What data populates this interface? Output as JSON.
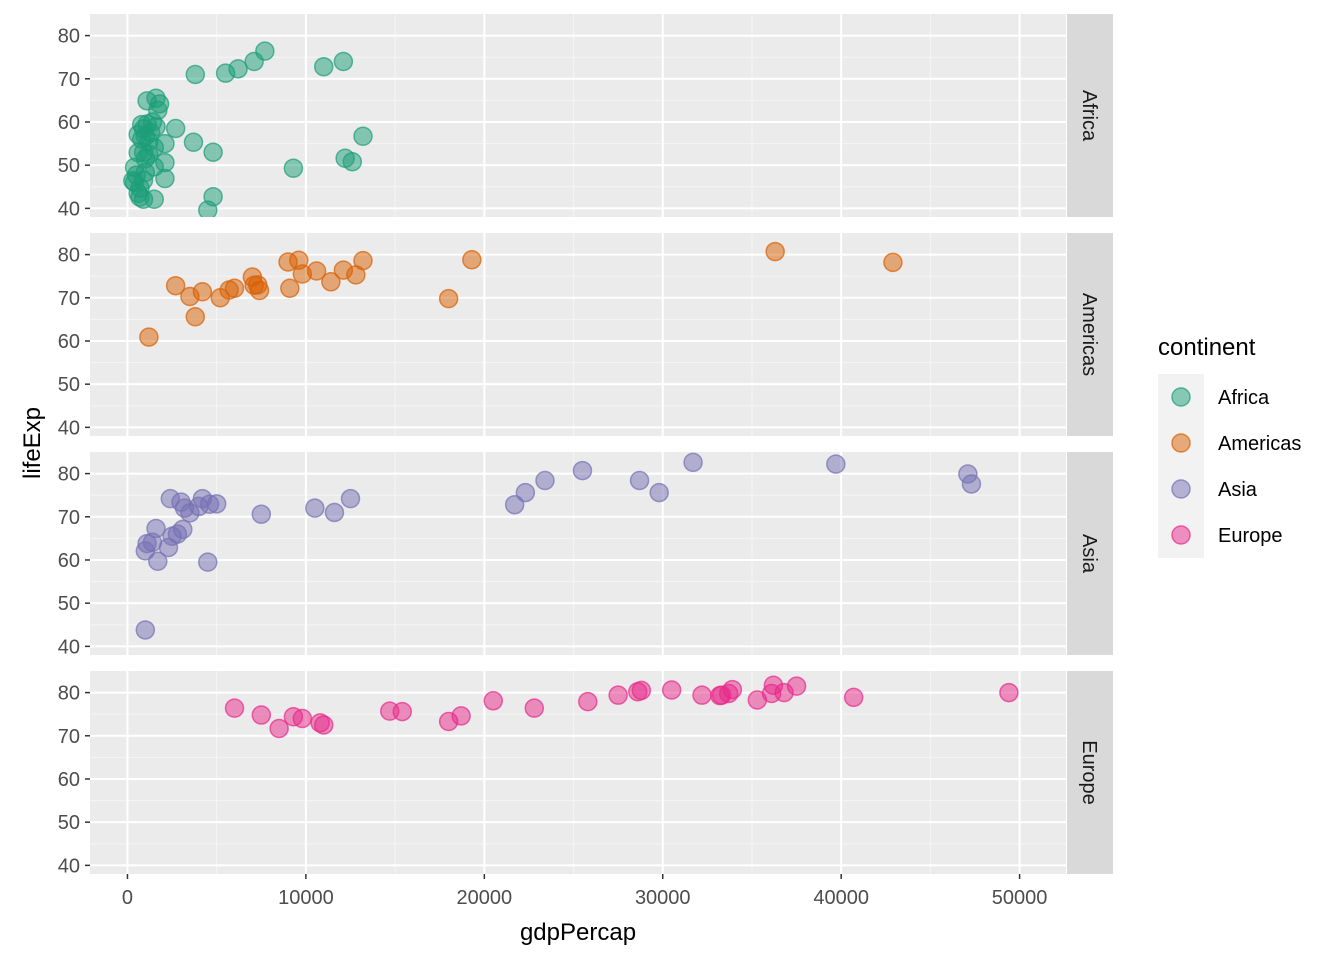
{
  "chart_data": {
    "type": "scatter",
    "facet_by": "continent",
    "facet_strip_position": "right",
    "xlabel": "gdpPercap",
    "ylabel": "lifeExp",
    "xlim": [
      -2100,
      52600
    ],
    "ylim": [
      38,
      85
    ],
    "x_ticks": [
      0,
      10000,
      20000,
      30000,
      40000,
      50000
    ],
    "y_ticks": [
      40,
      50,
      60,
      70,
      80
    ],
    "grid": true,
    "legend": {
      "title": "continent",
      "position": "right",
      "items": [
        "Africa",
        "Americas",
        "Asia",
        "Europe"
      ]
    },
    "colors": {
      "Africa": "#1B9E77",
      "Americas": "#D95F02",
      "Asia": "#7570B3",
      "Europe": "#E7298A"
    },
    "point_alpha": 0.5,
    "series": [
      {
        "name": "Africa",
        "points": [
          [
            3800,
            71.0
          ],
          [
            5500,
            71.3
          ],
          [
            6200,
            72.3
          ],
          [
            7100,
            74.0
          ],
          [
            7700,
            76.4
          ],
          [
            11000,
            72.8
          ],
          [
            12100,
            74.0
          ],
          [
            13200,
            56.7
          ],
          [
            12200,
            51.6
          ],
          [
            12600,
            50.8
          ],
          [
            9300,
            49.3
          ],
          [
            4800,
            53.0
          ],
          [
            4800,
            42.7
          ],
          [
            4500,
            39.6
          ],
          [
            3700,
            55.3
          ],
          [
            2700,
            58.5
          ],
          [
            2100,
            55.0
          ],
          [
            2100,
            50.6
          ],
          [
            2100,
            46.9
          ],
          [
            1800,
            64.2
          ],
          [
            1700,
            62.7
          ],
          [
            1600,
            65.5
          ],
          [
            1600,
            58.9
          ],
          [
            1500,
            54.1
          ],
          [
            1500,
            49.6
          ],
          [
            1500,
            42.1
          ],
          [
            1400,
            60.0
          ],
          [
            1300,
            57.5
          ],
          [
            1200,
            55.5
          ],
          [
            1200,
            52.5
          ],
          [
            1100,
            64.9
          ],
          [
            1100,
            59.5
          ],
          [
            1000,
            56.7
          ],
          [
            1000,
            51.5
          ],
          [
            1000,
            48.3
          ],
          [
            900,
            58.4
          ],
          [
            900,
            53.0
          ],
          [
            900,
            46.5
          ],
          [
            900,
            42.1
          ],
          [
            800,
            59.4
          ],
          [
            800,
            56.0
          ],
          [
            700,
            44.7
          ],
          [
            700,
            42.6
          ],
          [
            600,
            57.1
          ],
          [
            600,
            52.9
          ],
          [
            500,
            47.7
          ],
          [
            400,
            46.0
          ],
          [
            300,
            46.4
          ],
          [
            400,
            49.5
          ],
          [
            600,
            43.5
          ]
        ]
      },
      {
        "name": "Americas",
        "points": [
          [
            1200,
            60.9
          ],
          [
            2700,
            72.8
          ],
          [
            3500,
            70.3
          ],
          [
            3800,
            65.6
          ],
          [
            4200,
            71.4
          ],
          [
            5200,
            70.0
          ],
          [
            5700,
            71.8
          ],
          [
            6000,
            72.2
          ],
          [
            7000,
            74.8
          ],
          [
            7100,
            72.9
          ],
          [
            7300,
            73.0
          ],
          [
            7400,
            71.7
          ],
          [
            9000,
            78.3
          ],
          [
            9100,
            72.2
          ],
          [
            9600,
            78.7
          ],
          [
            9800,
            75.5
          ],
          [
            10600,
            76.2
          ],
          [
            11400,
            73.7
          ],
          [
            12100,
            76.4
          ],
          [
            12800,
            75.3
          ],
          [
            13200,
            78.6
          ],
          [
            18000,
            69.8
          ],
          [
            19300,
            78.8
          ],
          [
            36300,
            80.7
          ],
          [
            42900,
            78.2
          ]
        ]
      },
      {
        "name": "Asia",
        "points": [
          [
            1000,
            43.8
          ],
          [
            1000,
            62.1
          ],
          [
            1100,
            63.8
          ],
          [
            1400,
            64.1
          ],
          [
            1600,
            67.3
          ],
          [
            1700,
            59.7
          ],
          [
            2300,
            62.9
          ],
          [
            2400,
            74.2
          ],
          [
            2500,
            65.5
          ],
          [
            2800,
            66.0
          ],
          [
            3000,
            73.4
          ],
          [
            3100,
            67.1
          ],
          [
            3200,
            72.0
          ],
          [
            3500,
            70.9
          ],
          [
            4000,
            72.4
          ],
          [
            4200,
            74.2
          ],
          [
            4500,
            59.5
          ],
          [
            4600,
            72.9
          ],
          [
            5000,
            73.0
          ],
          [
            7500,
            70.6
          ],
          [
            10500,
            72.0
          ],
          [
            11600,
            71.0
          ],
          [
            12500,
            74.2
          ],
          [
            21700,
            72.8
          ],
          [
            22300,
            75.6
          ],
          [
            23400,
            78.4
          ],
          [
            25500,
            80.7
          ],
          [
            28700,
            78.4
          ],
          [
            29800,
            75.6
          ],
          [
            31700,
            82.6
          ],
          [
            39700,
            82.2
          ],
          [
            47100,
            79.9
          ],
          [
            47300,
            77.6
          ]
        ]
      },
      {
        "name": "Europe",
        "points": [
          [
            6000,
            76.4
          ],
          [
            7500,
            74.8
          ],
          [
            8500,
            71.7
          ],
          [
            9300,
            74.4
          ],
          [
            9800,
            74.0
          ],
          [
            10800,
            73.0
          ],
          [
            11000,
            72.5
          ],
          [
            14700,
            75.7
          ],
          [
            15400,
            75.6
          ],
          [
            18000,
            73.3
          ],
          [
            18700,
            74.6
          ],
          [
            20500,
            78.1
          ],
          [
            22800,
            76.4
          ],
          [
            25800,
            77.9
          ],
          [
            27500,
            79.4
          ],
          [
            28600,
            80.2
          ],
          [
            28800,
            80.5
          ],
          [
            30500,
            80.6
          ],
          [
            32200,
            79.4
          ],
          [
            33200,
            79.3
          ],
          [
            33300,
            79.4
          ],
          [
            33700,
            79.8
          ],
          [
            33900,
            80.7
          ],
          [
            35300,
            78.3
          ],
          [
            36100,
            79.8
          ],
          [
            36200,
            81.7
          ],
          [
            36800,
            80.0
          ],
          [
            37500,
            81.5
          ],
          [
            40700,
            78.9
          ],
          [
            49400,
            80.0
          ]
        ]
      }
    ]
  }
}
